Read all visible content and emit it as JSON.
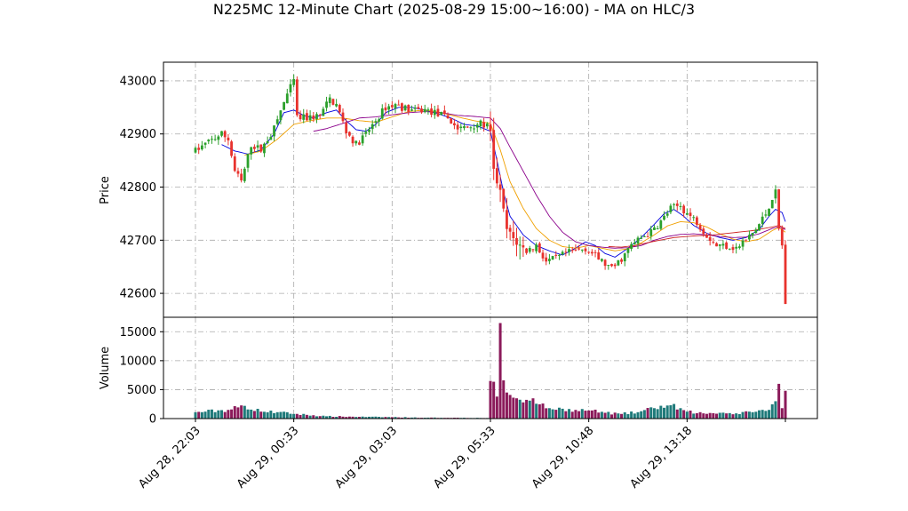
{
  "chart_data": {
    "type": "candlestick",
    "title": "N225MC 12-Minute Chart (2025-08-29 15:00~16:00) - MA on HLC/3",
    "colors": {
      "up": "#2ca02c",
      "down": "#e8322d",
      "volume_up": "#1f7a7a",
      "volume_down": "#8b1a5a",
      "ma_short": "#0000dd",
      "ma_mid": "#f0a000",
      "ma_long": "#8b008b",
      "ma_extra": "#cc2222",
      "grid": "#aaaaaa"
    },
    "grid": true,
    "x_tick_labels": [
      "Aug 28, 22:03",
      "Aug 29, 00:33",
      "Aug 29, 03:03",
      "Aug 29, 05:33",
      "Aug 29, 10:48",
      "Aug 29, 13:18"
    ],
    "x_tick_index": [
      0,
      30,
      60,
      90,
      120,
      150
    ],
    "bar_count": 181,
    "price_panel": {
      "ylabel": "Price",
      "ylim": [
        42555,
        43035
      ],
      "yticks": [
        42600,
        42700,
        42800,
        42900,
        43000
      ],
      "ytick_labels": [
        "42600",
        "42700",
        "42800",
        "42900",
        "43000"
      ]
    },
    "volume_panel": {
      "ylabel": "Volume",
      "ylim": [
        0,
        17500
      ],
      "yticks": [
        0,
        5000,
        10000,
        15000
      ],
      "ytick_labels": [
        "0",
        "5000",
        "10000",
        "15000"
      ]
    },
    "price_anchors": [
      [
        0,
        42868
      ],
      [
        4,
        42885
      ],
      [
        8,
        42900
      ],
      [
        10,
        42890
      ],
      [
        12,
        42830
      ],
      [
        14,
        42810
      ],
      [
        17,
        42880
      ],
      [
        20,
        42870
      ],
      [
        24,
        42910
      ],
      [
        27,
        42960
      ],
      [
        30,
        43000
      ],
      [
        31,
        42930
      ],
      [
        34,
        42930
      ],
      [
        38,
        42935
      ],
      [
        41,
        42965
      ],
      [
        43,
        42955
      ],
      [
        46,
        42905
      ],
      [
        49,
        42880
      ],
      [
        52,
        42900
      ],
      [
        55,
        42925
      ],
      [
        58,
        42950
      ],
      [
        61,
        42955
      ],
      [
        64,
        42948
      ],
      [
        67,
        42943
      ],
      [
        70,
        42945
      ],
      [
        73,
        42940
      ],
      [
        77,
        42930
      ],
      [
        80,
        42910
      ],
      [
        83,
        42912
      ],
      [
        86,
        42920
      ],
      [
        89,
        42915
      ],
      [
        90,
        42900
      ],
      [
        91,
        42830
      ],
      [
        93,
        42790
      ],
      [
        95,
        42720
      ],
      [
        98,
        42695
      ],
      [
        101,
        42680
      ],
      [
        104,
        42690
      ],
      [
        107,
        42660
      ],
      [
        110,
        42665
      ],
      [
        113,
        42675
      ],
      [
        116,
        42680
      ],
      [
        119,
        42685
      ],
      [
        122,
        42670
      ],
      [
        125,
        42655
      ],
      [
        127,
        42645
      ],
      [
        130,
        42665
      ],
      [
        133,
        42690
      ],
      [
        136,
        42705
      ],
      [
        139,
        42715
      ],
      [
        142,
        42735
      ],
      [
        145,
        42760
      ],
      [
        148,
        42765
      ],
      [
        150,
        42750
      ],
      [
        153,
        42735
      ],
      [
        156,
        42710
      ],
      [
        159,
        42690
      ],
      [
        162,
        42690
      ],
      [
        165,
        42685
      ],
      [
        168,
        42700
      ],
      [
        171,
        42720
      ],
      [
        174,
        42750
      ],
      [
        176,
        42780
      ],
      [
        177,
        42790
      ],
      [
        178,
        42720
      ],
      [
        179,
        42690
      ],
      [
        180,
        42600
      ]
    ],
    "volume_anchors": [
      [
        0,
        1100
      ],
      [
        10,
        1500
      ],
      [
        15,
        2200
      ],
      [
        20,
        1200
      ],
      [
        25,
        1100
      ],
      [
        30,
        800
      ],
      [
        40,
        400
      ],
      [
        50,
        300
      ],
      [
        60,
        250
      ],
      [
        70,
        150
      ],
      [
        80,
        150
      ],
      [
        89,
        100
      ],
      [
        90,
        6500
      ],
      [
        92,
        3800
      ],
      [
        93,
        16500
      ],
      [
        94,
        6600
      ],
      [
        95,
        4500
      ],
      [
        98,
        3500
      ],
      [
        100,
        2800
      ],
      [
        103,
        3500
      ],
      [
        106,
        2600
      ],
      [
        108,
        1800
      ],
      [
        112,
        1700
      ],
      [
        116,
        1500
      ],
      [
        120,
        1400
      ],
      [
        125,
        1000
      ],
      [
        130,
        800
      ],
      [
        135,
        1100
      ],
      [
        140,
        1800
      ],
      [
        145,
        2300
      ],
      [
        150,
        1200
      ],
      [
        155,
        900
      ],
      [
        160,
        1000
      ],
      [
        165,
        900
      ],
      [
        170,
        1100
      ],
      [
        175,
        1500
      ],
      [
        177,
        3000
      ],
      [
        178,
        6000
      ],
      [
        179,
        1800
      ],
      [
        180,
        4800
      ]
    ],
    "ma_lines": [
      {
        "key": "ma_short",
        "anchors": [
          [
            8,
            42880
          ],
          [
            12,
            42868
          ],
          [
            16,
            42862
          ],
          [
            20,
            42870
          ],
          [
            24,
            42900
          ],
          [
            27,
            42940
          ],
          [
            30,
            42945
          ],
          [
            33,
            42935
          ],
          [
            36,
            42930
          ],
          [
            40,
            42940
          ],
          [
            43,
            42945
          ],
          [
            46,
            42925
          ],
          [
            49,
            42908
          ],
          [
            52,
            42905
          ],
          [
            55,
            42918
          ],
          [
            58,
            42940
          ],
          [
            62,
            42950
          ],
          [
            66,
            42950
          ],
          [
            70,
            42945
          ],
          [
            74,
            42938
          ],
          [
            78,
            42930
          ],
          [
            82,
            42918
          ],
          [
            86,
            42915
          ],
          [
            90,
            42905
          ],
          [
            92,
            42850
          ],
          [
            94,
            42790
          ],
          [
            96,
            42745
          ],
          [
            100,
            42710
          ],
          [
            104,
            42690
          ],
          [
            108,
            42680
          ],
          [
            112,
            42672
          ],
          [
            116,
            42685
          ],
          [
            119,
            42697
          ],
          [
            122,
            42690
          ],
          [
            125,
            42675
          ],
          [
            128,
            42668
          ],
          [
            132,
            42685
          ],
          [
            136,
            42705
          ],
          [
            140,
            42730
          ],
          [
            143,
            42750
          ],
          [
            146,
            42758
          ],
          [
            149,
            42745
          ],
          [
            152,
            42728
          ],
          [
            156,
            42713
          ],
          [
            160,
            42705
          ],
          [
            164,
            42700
          ],
          [
            168,
            42705
          ],
          [
            172,
            42720
          ],
          [
            175,
            42745
          ],
          [
            177,
            42758
          ],
          [
            179,
            42752
          ],
          [
            180,
            42735
          ]
        ]
      },
      {
        "key": "ma_mid",
        "anchors": [
          [
            15,
            42860
          ],
          [
            20,
            42868
          ],
          [
            25,
            42890
          ],
          [
            30,
            42918
          ],
          [
            35,
            42925
          ],
          [
            40,
            42930
          ],
          [
            45,
            42930
          ],
          [
            50,
            42925
          ],
          [
            55,
            42922
          ],
          [
            60,
            42932
          ],
          [
            65,
            42942
          ],
          [
            70,
            42945
          ],
          [
            75,
            42940
          ],
          [
            80,
            42932
          ],
          [
            85,
            42925
          ],
          [
            90,
            42920
          ],
          [
            93,
            42870
          ],
          [
            96,
            42810
          ],
          [
            100,
            42760
          ],
          [
            104,
            42722
          ],
          [
            108,
            42700
          ],
          [
            112,
            42688
          ],
          [
            116,
            42685
          ],
          [
            120,
            42690
          ],
          [
            124,
            42685
          ],
          [
            128,
            42680
          ],
          [
            132,
            42684
          ],
          [
            136,
            42695
          ],
          [
            140,
            42710
          ],
          [
            144,
            42727
          ],
          [
            148,
            42735
          ],
          [
            152,
            42733
          ],
          [
            156,
            42725
          ],
          [
            160,
            42712
          ],
          [
            164,
            42702
          ],
          [
            168,
            42697
          ],
          [
            172,
            42702
          ],
          [
            176,
            42718
          ],
          [
            178,
            42724
          ],
          [
            180,
            42715
          ]
        ]
      },
      {
        "key": "ma_long",
        "anchors": [
          [
            36,
            42905
          ],
          [
            40,
            42910
          ],
          [
            45,
            42920
          ],
          [
            50,
            42930
          ],
          [
            55,
            42932
          ],
          [
            60,
            42936
          ],
          [
            65,
            42940
          ],
          [
            70,
            42942
          ],
          [
            75,
            42940
          ],
          [
            80,
            42935
          ],
          [
            85,
            42933
          ],
          [
            90,
            42930
          ],
          [
            93,
            42910
          ],
          [
            96,
            42875
          ],
          [
            100,
            42830
          ],
          [
            104,
            42785
          ],
          [
            108,
            42745
          ],
          [
            112,
            42715
          ],
          [
            116,
            42697
          ],
          [
            120,
            42690
          ],
          [
            124,
            42687
          ],
          [
            128,
            42685
          ],
          [
            132,
            42686
          ],
          [
            136,
            42690
          ],
          [
            140,
            42700
          ],
          [
            144,
            42707
          ],
          [
            148,
            42711
          ],
          [
            152,
            42712
          ],
          [
            156,
            42710
          ],
          [
            160,
            42707
          ],
          [
            164,
            42705
          ],
          [
            168,
            42706
          ],
          [
            172,
            42712
          ],
          [
            176,
            42722
          ],
          [
            178,
            42726
          ],
          [
            180,
            42720
          ]
        ]
      },
      {
        "key": "ma_extra",
        "anchors": [
          [
            126,
            42688
          ],
          [
            130,
            42687
          ],
          [
            134,
            42690
          ],
          [
            140,
            42698
          ],
          [
            146,
            42705
          ],
          [
            152,
            42708
          ],
          [
            158,
            42710
          ],
          [
            164,
            42714
          ],
          [
            170,
            42718
          ],
          [
            176,
            42725
          ],
          [
            178,
            42728
          ],
          [
            180,
            42722
          ]
        ]
      }
    ]
  }
}
